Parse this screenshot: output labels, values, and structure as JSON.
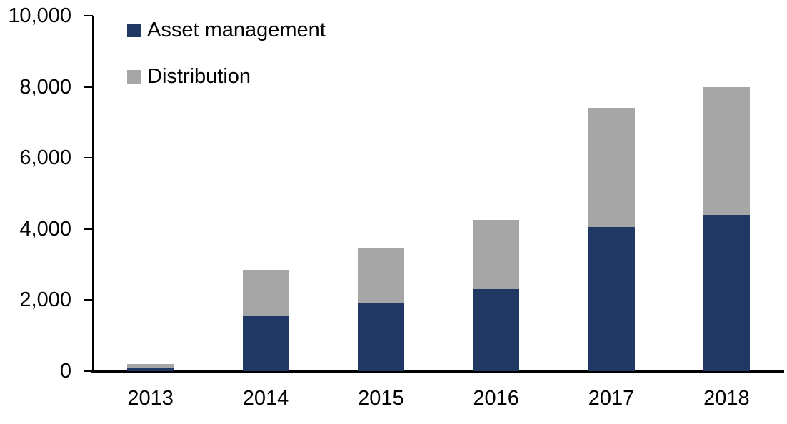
{
  "chart_data": {
    "type": "bar",
    "stacked": true,
    "title": "",
    "xlabel": "",
    "ylabel": "",
    "categories": [
      "2013",
      "2014",
      "2015",
      "2016",
      "2017",
      "2018"
    ],
    "series": [
      {
        "name": "Asset management",
        "color": "#1F3864",
        "values": [
          90,
          1560,
          1900,
          2300,
          4050,
          4400
        ]
      },
      {
        "name": "Distribution",
        "color": "#A6A6A6",
        "values": [
          110,
          1300,
          1580,
          1950,
          3350,
          3600
        ]
      }
    ],
    "totals": [
      200,
      2860,
      3480,
      4250,
      7400,
      8000
    ],
    "ylim": [
      0,
      10000
    ],
    "yticks": [
      0,
      2000,
      4000,
      6000,
      8000,
      10000
    ],
    "ytick_labels": [
      "0",
      "2,000",
      "4,000",
      "6,000",
      "8,000",
      "10,000"
    ],
    "grid": false,
    "legend_position": "top-left-inside",
    "axis_color": "#000000",
    "text_color": "#000000",
    "background_color": "#FFFFFF"
  }
}
